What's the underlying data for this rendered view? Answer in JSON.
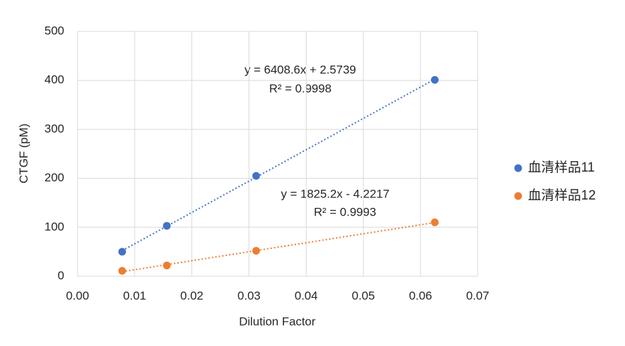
{
  "chart_data": {
    "type": "scatter",
    "x_label": "Dilution Factor",
    "y_label": "CTGF (pM)",
    "x": [
      0.0078125,
      0.015625,
      0.03125,
      0.0625
    ],
    "series": [
      {
        "name": "血清样品11",
        "color": "#4472c4",
        "values": [
          50,
          103,
          205,
          401
        ]
      },
      {
        "name": "血清样品12",
        "color": "#ed7d31",
        "values": [
          11,
          22,
          52,
          110
        ]
      }
    ],
    "annotations": [
      "y = 6408.6x + 2.5739",
      "R² = 0.9998",
      "y = 1825.2x - 4.2217",
      "R² = 0.9993"
    ],
    "trendline": true,
    "xlim": [
      0,
      0.07
    ],
    "xticks": [
      {
        "value": 0,
        "label": "0.00"
      },
      {
        "value": 0.01,
        "label": "0.01"
      },
      {
        "value": 0.02,
        "label": "0.02"
      },
      {
        "value": 0.03,
        "label": "0.03"
      },
      {
        "value": 0.04,
        "label": "0.04"
      },
      {
        "value": 0.05,
        "label": "0.05"
      },
      {
        "value": 0.06,
        "label": "0.06"
      },
      {
        "value": 0.07,
        "label": "0.07"
      }
    ],
    "ylim": [
      0,
      500
    ],
    "yticks": [
      0,
      100,
      200,
      300,
      400,
      500
    ],
    "grid": true,
    "legend": "right"
  }
}
